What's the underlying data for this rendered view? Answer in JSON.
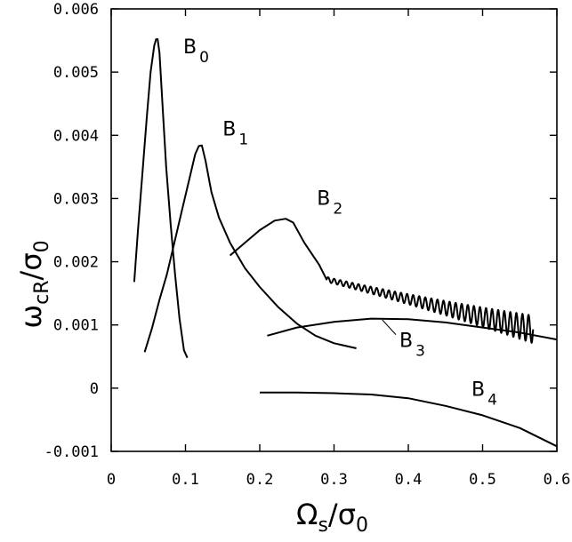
{
  "chart_data": {
    "type": "line",
    "xlabel": {
      "main": "Ω",
      "sub": "s",
      "sep": "/",
      "den": "σ",
      "den_sub": "0"
    },
    "ylabel": {
      "main": "ω",
      "sub": "cR",
      "sep": "/",
      "den": "σ",
      "den_sub": "0"
    },
    "xlim": [
      0,
      0.6
    ],
    "ylim": [
      -0.001,
      0.006
    ],
    "x_ticks": [
      "0",
      "0.1",
      "0.2",
      "0.3",
      "0.4",
      "0.5",
      "0.6"
    ],
    "y_ticks": [
      "-0.001",
      "0",
      "0.001",
      "0.002",
      "0.003",
      "0.004",
      "0.005",
      "0.006"
    ],
    "grid": false,
    "series": [
      {
        "name": "B",
        "sub": "0",
        "x": [
          0.031,
          0.036,
          0.042,
          0.048,
          0.053,
          0.058,
          0.0605,
          0.0625,
          0.065,
          0.069,
          0.074,
          0.08,
          0.086,
          0.092,
          0.098,
          0.1025
        ],
        "y": [
          0.00168,
          0.0025,
          0.0034,
          0.0043,
          0.005,
          0.00542,
          0.00552,
          0.00552,
          0.0053,
          0.0045,
          0.0035,
          0.0026,
          0.0018,
          0.0011,
          0.0006,
          0.00048
        ]
      },
      {
        "name": "B",
        "sub": "1",
        "x": [
          0.045,
          0.055,
          0.065,
          0.075,
          0.085,
          0.095,
          0.105,
          0.113,
          0.118,
          0.122,
          0.127,
          0.135,
          0.145,
          0.16,
          0.18,
          0.2,
          0.225,
          0.25,
          0.275,
          0.3,
          0.33
        ],
        "y": [
          0.00057,
          0.00095,
          0.0014,
          0.0018,
          0.0023,
          0.0028,
          0.0033,
          0.0037,
          0.00383,
          0.00384,
          0.0036,
          0.0031,
          0.0027,
          0.0023,
          0.0019,
          0.0016,
          0.00128,
          0.00102,
          0.00083,
          0.00071,
          0.00063
        ]
      },
      {
        "name": "B",
        "sub": "2",
        "x": [
          0.16,
          0.18,
          0.2,
          0.22,
          0.235,
          0.245,
          0.26,
          0.28,
          0.3,
          0.32,
          0.34,
          0.36,
          0.38,
          0.4,
          0.42,
          0.44
        ],
        "y": [
          0.0021,
          0.0023,
          0.0025,
          0.00265,
          0.00268,
          0.00262,
          0.0023,
          0.00195,
          0.00175,
          0.0016,
          0.00148,
          0.00138,
          0.0013,
          0.00124,
          0.0012,
          0.00116
        ],
        "oscillation": {
          "x_start": 0.29,
          "x_end": 0.568,
          "center_start": 0.00172,
          "center_end": 0.00093,
          "amp_start": 4e-05,
          "amp_end": 0.00022,
          "cycles": 34
        }
      },
      {
        "name": "B",
        "sub": "3",
        "x": [
          0.21,
          0.25,
          0.3,
          0.35,
          0.4,
          0.45,
          0.5,
          0.55,
          0.6
        ],
        "y": [
          0.00083,
          0.00096,
          0.00105,
          0.0011,
          0.00109,
          0.00104,
          0.00096,
          0.00088,
          0.00077
        ]
      },
      {
        "name": "B",
        "sub": "4",
        "x": [
          0.2,
          0.25,
          0.3,
          0.35,
          0.4,
          0.45,
          0.5,
          0.55,
          0.6
        ],
        "y": [
          -7e-05,
          -7e-05,
          -8e-05,
          -0.0001,
          -0.00016,
          -0.00028,
          -0.00043,
          -0.00063,
          -0.00092
        ]
      }
    ],
    "annotations": [
      {
        "label": "B",
        "sub": "0",
        "x": 0.097,
        "y": 0.0053
      },
      {
        "label": "B",
        "sub": "1",
        "x": 0.15,
        "y": 0.004
      },
      {
        "label": "B",
        "sub": "2",
        "x": 0.277,
        "y": 0.0029
      },
      {
        "label": "B",
        "sub": "3",
        "x": 0.388,
        "y": 0.00065,
        "pointer_to": {
          "x": 0.365,
          "y": 0.00108
        }
      },
      {
        "label": "B",
        "sub": "4",
        "x": 0.485,
        "y": -0.00012
      }
    ]
  }
}
